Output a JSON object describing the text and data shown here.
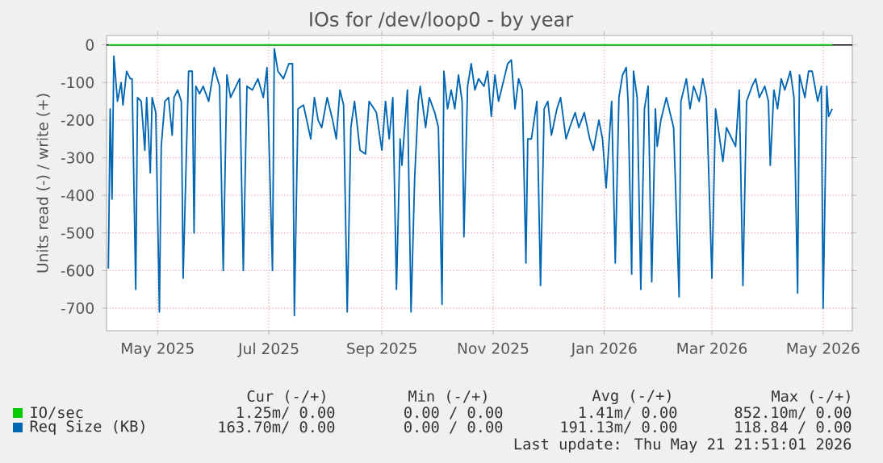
{
  "chart_data": {
    "type": "line",
    "title": "IOs for /dev/loop0 - by year",
    "ylabel": "Units read (-) / write (+)",
    "xlim": [
      "2025-04-03",
      "2026-05-17"
    ],
    "xticks": [
      {
        "value": "2025-05-01",
        "label": "May 2025"
      },
      {
        "value": "2025-07-01",
        "label": "Jul 2025"
      },
      {
        "value": "2025-09-01",
        "label": "Sep 2025"
      },
      {
        "value": "2025-11-01",
        "label": "Nov 2025"
      },
      {
        "value": "2026-01-01",
        "label": "Jan 2026"
      },
      {
        "value": "2026-03-01",
        "label": "Mar 2026"
      },
      {
        "value": "2026-05-01",
        "label": "May 2026"
      }
    ],
    "ylim": [
      -760,
      25
    ],
    "yticks": [
      0,
      -100,
      -200,
      -300,
      -400,
      -500,
      -600,
      -700
    ],
    "grid": true,
    "legend": "bottom",
    "ref_lines": [
      {
        "axis": "y",
        "value": 0,
        "color": "#000000"
      }
    ],
    "series": [
      {
        "name": "IO/sec",
        "color": "#00cc00",
        "x": [
          "2025-04-04",
          "2026-05-06"
        ],
        "values": [
          0,
          0
        ]
      },
      {
        "name": "Req Size (KB)",
        "color": "#0066b3",
        "x": [
          "2025-04-04",
          "2025-04-05",
          "2025-04-06",
          "2025-04-07",
          "2025-04-09",
          "2025-04-11",
          "2025-04-12",
          "2025-04-14",
          "2025-04-16",
          "2025-04-17",
          "2025-04-19",
          "2025-04-20",
          "2025-04-22",
          "2025-04-24",
          "2025-04-25",
          "2025-04-27",
          "2025-04-28",
          "2025-04-30",
          "2025-05-02",
          "2025-05-03",
          "2025-05-05",
          "2025-05-07",
          "2025-05-09",
          "2025-05-10",
          "2025-05-12",
          "2025-05-14",
          "2025-05-15",
          "2025-05-17",
          "2025-05-18",
          "2025-05-20",
          "2025-05-21",
          "2025-05-22",
          "2025-05-24",
          "2025-05-26",
          "2025-05-29",
          "2025-06-01",
          "2025-06-04",
          "2025-06-06",
          "2025-06-08",
          "2025-06-10",
          "2025-06-13",
          "2025-06-15",
          "2025-06-17",
          "2025-06-19",
          "2025-06-22",
          "2025-06-25",
          "2025-06-28",
          "2025-06-30",
          "2025-07-03",
          "2025-07-04",
          "2025-07-06",
          "2025-07-09",
          "2025-07-12",
          "2025-07-14",
          "2025-07-15",
          "2025-07-17",
          "2025-07-20",
          "2025-07-24",
          "2025-07-26",
          "2025-07-28",
          "2025-07-30",
          "2025-08-02",
          "2025-08-05",
          "2025-08-07",
          "2025-08-09",
          "2025-08-11",
          "2025-08-13",
          "2025-08-15",
          "2025-08-17",
          "2025-08-20",
          "2025-08-23",
          "2025-08-25",
          "2025-08-29",
          "2025-09-01",
          "2025-09-03",
          "2025-09-05",
          "2025-09-07",
          "2025-09-09",
          "2025-09-11",
          "2025-09-12",
          "2025-09-15",
          "2025-09-17",
          "2025-09-19",
          "2025-09-21",
          "2025-09-22",
          "2025-09-25",
          "2025-09-27",
          "2025-09-30",
          "2025-10-02",
          "2025-10-04",
          "2025-10-05",
          "2025-10-07",
          "2025-10-09",
          "2025-10-11",
          "2025-10-13",
          "2025-10-15",
          "2025-10-16",
          "2025-10-18",
          "2025-10-20",
          "2025-10-22",
          "2025-10-24",
          "2025-10-27",
          "2025-10-29",
          "2025-10-31",
          "2025-11-02",
          "2025-11-04",
          "2025-11-07",
          "2025-11-09",
          "2025-11-11",
          "2025-11-13",
          "2025-11-15",
          "2025-11-17",
          "2025-11-19",
          "2025-11-20",
          "2025-11-22",
          "2025-11-25",
          "2025-11-27",
          "2025-11-29",
          "2025-12-01",
          "2025-12-03",
          "2025-12-06",
          "2025-12-08",
          "2025-12-11",
          "2025-12-13",
          "2025-12-16",
          "2025-12-18",
          "2025-12-21",
          "2025-12-24",
          "2025-12-26",
          "2025-12-29",
          "2025-12-31",
          "2026-01-02",
          "2026-01-05",
          "2026-01-07",
          "2026-01-09",
          "2026-01-11",
          "2026-01-13",
          "2026-01-14",
          "2026-01-16",
          "2026-01-17",
          "2026-01-19",
          "2026-01-21",
          "2026-01-23",
          "2026-01-25",
          "2026-01-27",
          "2026-01-29",
          "2026-01-30",
          "2026-02-01",
          "2026-02-04",
          "2026-02-06",
          "2026-02-08",
          "2026-02-11",
          "2026-02-12",
          "2026-02-15",
          "2026-02-17",
          "2026-02-19",
          "2026-02-22",
          "2026-02-24",
          "2026-02-26",
          "2026-03-01",
          "2026-03-03",
          "2026-03-05",
          "2026-03-07",
          "2026-03-09",
          "2026-03-12",
          "2026-03-14",
          "2026-03-16",
          "2026-03-18",
          "2026-03-20",
          "2026-03-23",
          "2026-03-25",
          "2026-03-27",
          "2026-03-30",
          "2026-04-01",
          "2026-04-02",
          "2026-04-04",
          "2026-04-06",
          "2026-04-08",
          "2026-04-10",
          "2026-04-13",
          "2026-04-15",
          "2026-04-17",
          "2026-04-18",
          "2026-04-21",
          "2026-04-23",
          "2026-04-25",
          "2026-04-28",
          "2026-04-30",
          "2026-05-01",
          "2026-05-03",
          "2026-05-04",
          "2026-05-06"
        ],
        "values": [
          -595,
          -170,
          -410,
          -30,
          -150,
          -100,
          -160,
          -70,
          -90,
          -90,
          -650,
          -140,
          -150,
          -280,
          -140,
          -340,
          -140,
          -180,
          -710,
          -270,
          -150,
          -140,
          -240,
          -140,
          -120,
          -150,
          -620,
          -250,
          -70,
          -70,
          -500,
          -110,
          -130,
          -110,
          -150,
          -60,
          -110,
          -600,
          -80,
          -140,
          -110,
          -90,
          -600,
          -110,
          -120,
          -90,
          -140,
          -60,
          -600,
          -10,
          -70,
          -90,
          -50,
          -50,
          -720,
          -170,
          -160,
          -250,
          -140,
          -200,
          -220,
          -140,
          -200,
          -250,
          -120,
          -160,
          -710,
          -220,
          -150,
          -280,
          -290,
          -150,
          -180,
          -280,
          -150,
          -250,
          -140,
          -650,
          -250,
          -320,
          -120,
          -710,
          -350,
          -150,
          -110,
          -220,
          -140,
          -180,
          -220,
          -690,
          -70,
          -170,
          -120,
          -170,
          -80,
          -150,
          -510,
          -110,
          -50,
          -120,
          -90,
          -110,
          -70,
          -190,
          -80,
          -150,
          -90,
          -50,
          -40,
          -170,
          -90,
          -120,
          -580,
          -250,
          -250,
          -150,
          -640,
          -170,
          -150,
          -240,
          -170,
          -140,
          -250,
          -220,
          -180,
          -220,
          -180,
          -250,
          -280,
          -200,
          -250,
          -380,
          -150,
          -580,
          -140,
          -80,
          -60,
          -150,
          -610,
          -70,
          -140,
          -650,
          -170,
          -110,
          -630,
          -170,
          -270,
          -200,
          -140,
          -180,
          -220,
          -670,
          -150,
          -90,
          -170,
          -110,
          -150,
          -90,
          -140,
          -620,
          -170,
          -240,
          -310,
          -220,
          -250,
          -270,
          -120,
          -640,
          -150,
          -110,
          -90,
          -140,
          -110,
          -150,
          -320,
          -120,
          -170,
          -90,
          -120,
          -70,
          -140,
          -660,
          -80,
          -140,
          -70,
          -70,
          -150,
          -110,
          -700,
          -110,
          -190,
          -170
        ]
      }
    ],
    "annotations": [
      "Cur (-/+)",
      "Min (-/+)",
      "Avg (-/+)",
      "Max (-/+)",
      "1.25m/  0.00",
      "0.00 /  0.00",
      "1.41m/  0.00",
      "852.10m/  0.00",
      "163.70m/  0.00",
      "0.00 /  0.00",
      "191.13m/  0.00",
      "118.84 /  0.00",
      "Last update: Thu May 21 21:51:01 2026"
    ]
  }
}
